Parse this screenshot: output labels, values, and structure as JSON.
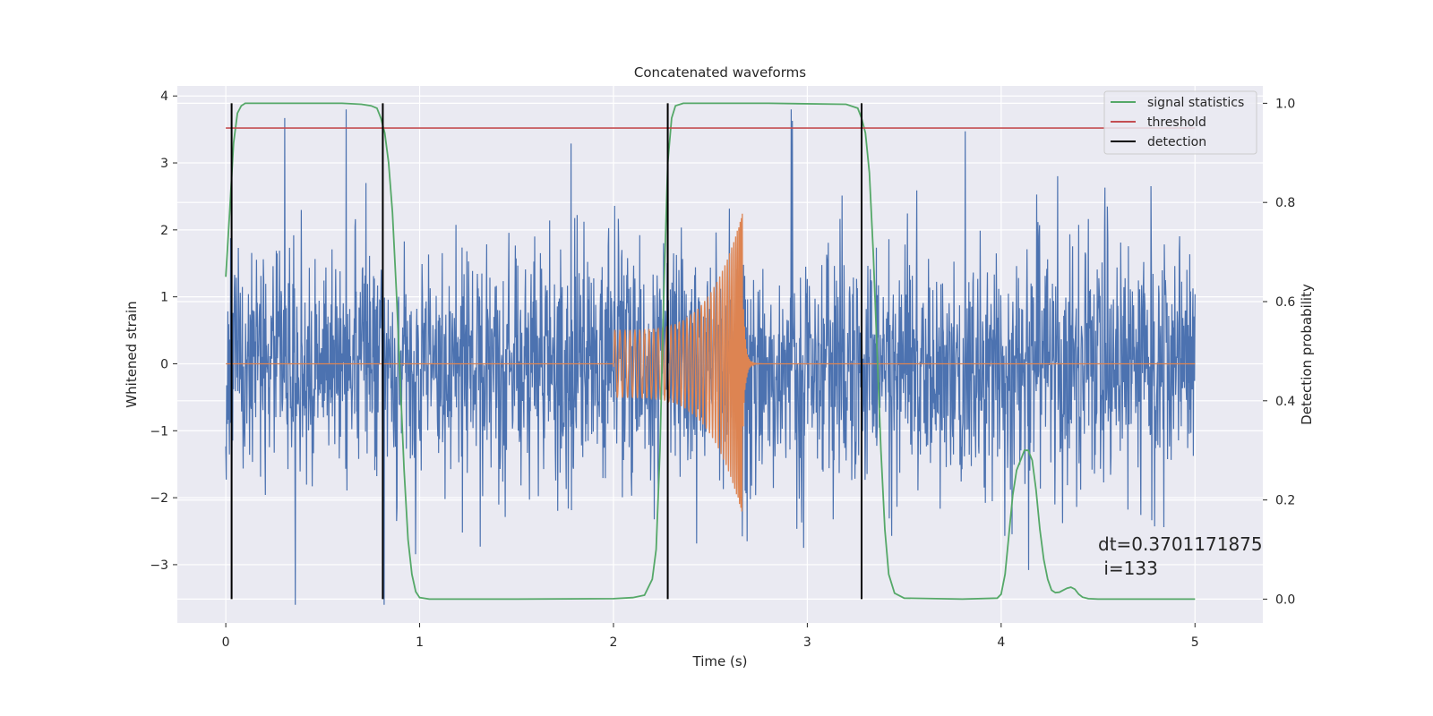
{
  "chart_data": {
    "type": "line",
    "title": "Concatenated waveforms",
    "xlabel": "Time (s)",
    "ylabel": "Whitened strain",
    "ylabel_right": "Detection probability",
    "xlim": [
      -0.25,
      5.35
    ],
    "ylim": [
      -3.87,
      4.15
    ],
    "ylim_right": [
      -0.048,
      1.035
    ],
    "xticks": [
      0,
      1,
      2,
      3,
      4,
      5
    ],
    "xtick_labels": [
      "0",
      "1",
      "2",
      "3",
      "4",
      "5"
    ],
    "yticks": [
      -3,
      -2,
      -1,
      0,
      1,
      2,
      3,
      4
    ],
    "ytick_labels": [
      "−3",
      "−2",
      "−1",
      "0",
      "1",
      "2",
      "3",
      "4"
    ],
    "yticks_right": [
      0.0,
      0.2,
      0.4,
      0.6,
      0.8,
      1.0
    ],
    "ytick_labels_right": [
      "0.0",
      "0.2",
      "0.4",
      "0.6",
      "0.8",
      "1.0"
    ],
    "grid": true,
    "legend_placement": "top-right",
    "colors": {
      "strain": "#4c72b0",
      "waveform": "#dd8452",
      "signal_statistics": "#55a868",
      "threshold": "#c44e52",
      "detection": "#000000",
      "background": "#eaeaf2",
      "grid": "#ffffff"
    },
    "series": [
      {
        "name": "signal statistics",
        "axis": "right",
        "x": [
          0.0,
          0.02,
          0.04,
          0.06,
          0.08,
          0.1,
          0.15,
          0.2,
          0.4,
          0.6,
          0.7,
          0.75,
          0.78,
          0.8,
          0.82,
          0.84,
          0.86,
          0.88,
          0.9,
          0.92,
          0.94,
          0.96,
          0.98,
          1.0,
          1.05,
          1.2,
          1.5,
          2.0,
          2.1,
          2.16,
          2.2,
          2.22,
          2.24,
          2.26,
          2.28,
          2.3,
          2.32,
          2.36,
          2.4,
          2.8,
          3.2,
          3.26,
          3.28,
          3.3,
          3.32,
          3.34,
          3.36,
          3.38,
          3.4,
          3.42,
          3.45,
          3.5,
          3.8,
          3.98,
          4.0,
          4.02,
          4.04,
          4.06,
          4.08,
          4.1,
          4.12,
          4.14,
          4.16,
          4.18,
          4.2,
          4.22,
          4.24,
          4.26,
          4.28,
          4.3,
          4.32,
          4.34,
          4.36,
          4.38,
          4.4,
          4.42,
          4.45,
          4.5,
          4.7,
          5.0
        ],
        "values": [
          0.65,
          0.78,
          0.92,
          0.98,
          0.995,
          1.0,
          1.0,
          1.0,
          1.0,
          1.0,
          0.998,
          0.995,
          0.99,
          0.97,
          0.94,
          0.88,
          0.78,
          0.62,
          0.44,
          0.26,
          0.12,
          0.05,
          0.015,
          0.003,
          0.0,
          0.0,
          0.0,
          0.001,
          0.003,
          0.008,
          0.04,
          0.1,
          0.3,
          0.62,
          0.88,
          0.97,
          0.995,
          1.0,
          1.0,
          1.0,
          0.998,
          0.99,
          0.97,
          0.94,
          0.86,
          0.7,
          0.5,
          0.3,
          0.14,
          0.05,
          0.012,
          0.002,
          0.0,
          0.002,
          0.01,
          0.05,
          0.13,
          0.21,
          0.26,
          0.28,
          0.3,
          0.3,
          0.28,
          0.22,
          0.14,
          0.08,
          0.04,
          0.018,
          0.013,
          0.014,
          0.018,
          0.022,
          0.024,
          0.02,
          0.01,
          0.004,
          0.001,
          0.0,
          0.0,
          0.0
        ]
      },
      {
        "name": "threshold",
        "axis": "right",
        "x": [
          0.0,
          5.0
        ],
        "values": [
          0.95,
          0.95
        ]
      },
      {
        "name": "detection",
        "axis": "right",
        "type": "vlines",
        "x": [
          0.03,
          0.81,
          2.28,
          3.28
        ],
        "y_range": [
          0.0,
          1.0
        ]
      }
    ],
    "strain": {
      "axis": "left",
      "x_range": [
        0,
        5
      ],
      "amplitude_sigma": 0.85,
      "peak_range": [
        -3.6,
        3.8
      ]
    },
    "injected_waveform": {
      "axis": "left",
      "x_start": 2.0,
      "x_merger": 2.67,
      "amplitude_start": 0.5,
      "amplitude_peak": 2.3,
      "baseline": 0
    },
    "annotation": {
      "line1": "dt=0.3701171875",
      "line2": " i=133"
    }
  }
}
